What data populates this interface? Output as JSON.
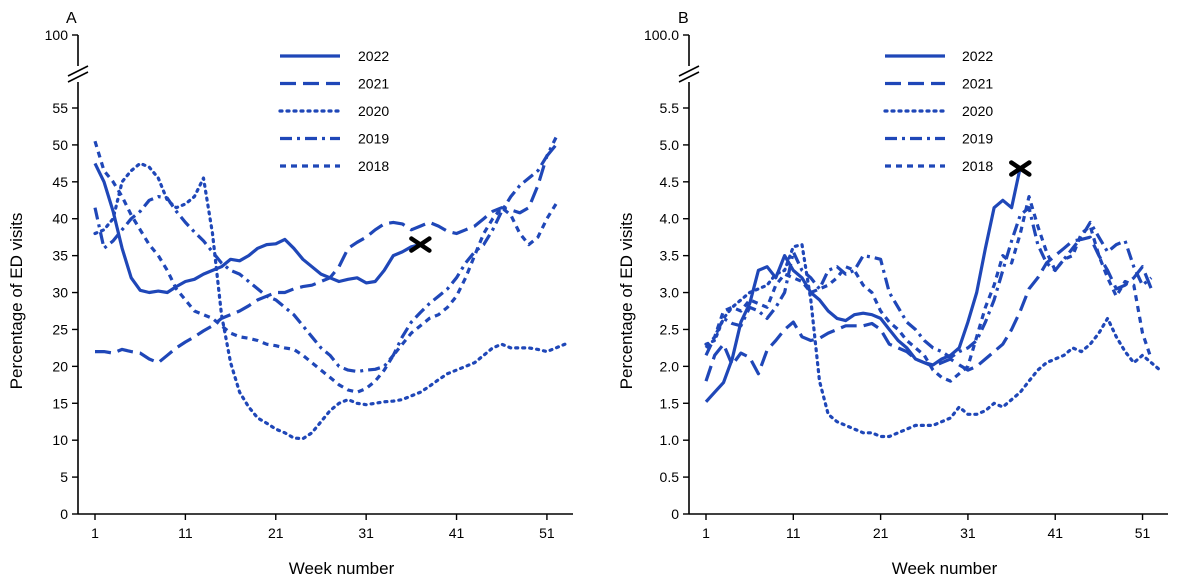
{
  "colors": {
    "series": "#1f47b8",
    "axis": "#000000",
    "marker": "#000000"
  },
  "chart_data": [
    {
      "type": "line",
      "panel_label": "A",
      "xlabel": "Week number",
      "ylabel": "Percentage of ED visits",
      "xlim": [
        1,
        53
      ],
      "xticks": [
        "1",
        "11",
        "21",
        "31",
        "41",
        "51"
      ],
      "ylim": [
        0,
        55
      ],
      "yticks": [
        "0",
        "5",
        "10",
        "15",
        "20",
        "25",
        "30",
        "35",
        "40",
        "45",
        "50",
        "55"
      ],
      "axis_break_label": "100",
      "legend_position": "top-center",
      "series": [
        {
          "name": "2022",
          "style": "solid",
          "x": [
            1,
            2,
            3,
            4,
            5,
            6,
            7,
            8,
            9,
            10,
            11,
            12,
            13,
            14,
            15,
            16,
            17,
            18,
            19,
            20,
            21,
            22,
            23,
            24,
            25,
            26,
            27,
            28,
            29,
            30,
            31,
            32,
            33,
            34,
            35,
            36,
            37
          ],
          "y": [
            47.5,
            45,
            41,
            36,
            32,
            30.3,
            30,
            30.2,
            30,
            30.8,
            31.5,
            31.8,
            32.5,
            33,
            33.5,
            34.5,
            34.3,
            35,
            36,
            36.5,
            36.6,
            37.2,
            36,
            34.5,
            33.5,
            32.5,
            32,
            31.5,
            31.8,
            32,
            31.3,
            31.5,
            33,
            35,
            35.5,
            36.2,
            36.5
          ]
        },
        {
          "name": "2021",
          "style": "long-dash",
          "x": [
            1,
            2,
            3,
            4,
            5,
            6,
            7,
            8,
            9,
            10,
            11,
            12,
            13,
            14,
            15,
            16,
            17,
            18,
            19,
            20,
            21,
            22,
            23,
            24,
            25,
            26,
            27,
            28,
            29,
            30,
            31,
            32,
            33,
            34,
            35,
            36,
            37,
            38,
            39,
            40,
            41,
            42,
            43,
            44,
            45,
            46,
            47,
            48,
            49,
            50,
            51,
            52
          ],
          "y": [
            22,
            22,
            21.8,
            22.3,
            22,
            21.8,
            21,
            20.5,
            21.5,
            22.5,
            23.3,
            24,
            24.8,
            25.5,
            26.5,
            27,
            27.5,
            28.2,
            29,
            29.5,
            30,
            30,
            30.5,
            30.8,
            31,
            31.5,
            32,
            33.5,
            36,
            36.8,
            37.5,
            38.5,
            39.3,
            39.5,
            39.3,
            38.5,
            39,
            39.5,
            39,
            38.3,
            38,
            38.5,
            39,
            40,
            41,
            41.5,
            41.2,
            40.8,
            41.5,
            44.5,
            48.5,
            50
          ]
        },
        {
          "name": "2020",
          "style": "dotted",
          "x": [
            1,
            2,
            3,
            4,
            5,
            6,
            7,
            8,
            9,
            10,
            11,
            12,
            13,
            14,
            15,
            16,
            17,
            18,
            19,
            20,
            21,
            22,
            23,
            24,
            25,
            26,
            27,
            28,
            29,
            30,
            31,
            32,
            33,
            34,
            35,
            36,
            37,
            38,
            39,
            40,
            41,
            42,
            43,
            44,
            45,
            46,
            47,
            48,
            49,
            50,
            51,
            52,
            53
          ],
          "y": [
            38,
            38.5,
            40,
            45,
            46.5,
            47.5,
            47,
            45.5,
            42.5,
            41.5,
            42,
            43,
            45.5,
            38,
            27,
            20.5,
            16.5,
            14.5,
            13,
            12.3,
            11.5,
            11,
            10.3,
            10.2,
            11,
            12.5,
            14,
            15,
            15.5,
            15,
            14.8,
            15,
            15.2,
            15.3,
            15.5,
            16,
            16.5,
            17.3,
            18.2,
            19,
            19.5,
            20,
            20.5,
            21.5,
            22.5,
            23,
            22.5,
            22.5,
            22.5,
            22.3,
            22,
            22.5,
            23
          ]
        },
        {
          "name": "2019",
          "style": "dash-dot",
          "x": [
            1,
            2,
            3,
            4,
            5,
            6,
            7,
            8,
            9,
            10,
            11,
            12,
            13,
            14,
            15,
            16,
            17,
            18,
            19,
            20,
            21,
            22,
            23,
            24,
            25,
            26,
            27,
            28,
            29,
            30,
            31,
            32,
            33,
            34,
            35,
            36,
            37,
            38,
            39,
            40,
            41,
            42,
            43,
            44,
            45,
            46,
            47,
            48,
            49,
            50,
            51,
            52
          ],
          "y": [
            41.5,
            36,
            37,
            38.5,
            40,
            41,
            42.5,
            43,
            42.8,
            41,
            39.5,
            38.2,
            37,
            35.5,
            34,
            33,
            32.5,
            31.5,
            30.5,
            29.5,
            29,
            28,
            27,
            25.5,
            24,
            22.5,
            21.5,
            20,
            19.5,
            19.3,
            19.5,
            19.6,
            20,
            21.5,
            24,
            26,
            27.3,
            28.5,
            29.5,
            30.5,
            32,
            34,
            35.5,
            36.5,
            38.5,
            41,
            43,
            44.5,
            45.5,
            46.5,
            48.5,
            51
          ]
        },
        {
          "name": "2018",
          "style": "short-dash",
          "x": [
            1,
            2,
            3,
            4,
            5,
            6,
            7,
            8,
            9,
            10,
            11,
            12,
            13,
            14,
            15,
            16,
            17,
            18,
            19,
            20,
            21,
            22,
            23,
            24,
            25,
            26,
            27,
            28,
            29,
            30,
            31,
            32,
            33,
            34,
            35,
            36,
            37,
            38,
            39,
            40,
            41,
            42,
            43,
            44,
            45,
            46,
            47,
            48,
            49,
            50,
            51,
            52
          ],
          "y": [
            50.5,
            46.5,
            45,
            43,
            40.5,
            38.5,
            36.5,
            35,
            33,
            30.5,
            29,
            27.5,
            27,
            26.5,
            25.5,
            24.5,
            24,
            23.8,
            23.5,
            23,
            22.8,
            22.5,
            22.3,
            21.5,
            20.5,
            19.5,
            18.5,
            17.5,
            16.8,
            16.5,
            17,
            18,
            19.5,
            21.5,
            23,
            24.5,
            25.5,
            26.5,
            27,
            28,
            29.5,
            32,
            35,
            38,
            40,
            41.5,
            40.5,
            38,
            36.5,
            37.5,
            40,
            42
          ]
        }
      ],
      "marker": {
        "symbol": "X",
        "x": 37,
        "y": 36.5
      }
    },
    {
      "type": "line",
      "panel_label": "B",
      "xlabel": "Week number",
      "ylabel": "Percentage of ED visits",
      "xlim": [
        1,
        53
      ],
      "xticks": [
        "1",
        "11",
        "21",
        "31",
        "41",
        "51"
      ],
      "ylim": [
        0,
        5.5
      ],
      "yticks": [
        "0",
        "0.5",
        "1.0",
        "1.5",
        "2.0",
        "2.5",
        "3.0",
        "3.5",
        "4.0",
        "4.5",
        "5.0",
        "5.5"
      ],
      "axis_break_label": "100.0",
      "legend_position": "top-center",
      "series": [
        {
          "name": "2022",
          "style": "solid",
          "x": [
            1,
            2,
            3,
            4,
            5,
            6,
            7,
            8,
            9,
            10,
            11,
            12,
            13,
            14,
            15,
            16,
            17,
            18,
            19,
            20,
            21,
            22,
            23,
            24,
            25,
            26,
            27,
            28,
            29,
            30,
            31,
            32,
            33,
            34,
            35,
            36,
            37
          ],
          "y": [
            1.52,
            1.65,
            1.78,
            2.1,
            2.6,
            2.85,
            3.3,
            3.35,
            3.2,
            3.5,
            3.3,
            3.2,
            3.0,
            2.9,
            2.75,
            2.65,
            2.62,
            2.7,
            2.72,
            2.7,
            2.65,
            2.5,
            2.35,
            2.25,
            2.1,
            2.05,
            2.02,
            2.1,
            2.15,
            2.25,
            2.6,
            3.0,
            3.6,
            4.15,
            4.25,
            4.15,
            4.7
          ]
        },
        {
          "name": "2021",
          "style": "long-dash",
          "x": [
            1,
            2,
            3,
            4,
            5,
            6,
            7,
            8,
            9,
            10,
            11,
            12,
            13,
            14,
            15,
            16,
            17,
            18,
            19,
            20,
            21,
            22,
            23,
            24,
            25,
            26,
            27,
            28,
            29,
            30,
            31,
            32,
            33,
            34,
            35,
            36,
            37,
            38,
            39,
            40,
            41,
            42,
            43,
            44,
            45,
            46,
            47,
            48,
            49,
            50,
            51,
            52
          ],
          "y": [
            1.8,
            2.15,
            2.3,
            2.02,
            2.18,
            2.12,
            1.9,
            2.22,
            2.35,
            2.5,
            2.6,
            2.4,
            2.35,
            2.38,
            2.45,
            2.5,
            2.55,
            2.55,
            2.55,
            2.58,
            2.5,
            2.3,
            2.25,
            2.2,
            2.1,
            2.05,
            2.0,
            2.05,
            2.1,
            2.02,
            1.95,
            2.0,
            2.1,
            2.2,
            2.3,
            2.5,
            2.75,
            3.05,
            3.2,
            3.4,
            3.5,
            3.6,
            3.7,
            3.72,
            3.75,
            3.5,
            3.3,
            3.05,
            3.1,
            3.2,
            3.35,
            3.05
          ]
        },
        {
          "name": "2020",
          "style": "dotted",
          "x": [
            1,
            2,
            3,
            4,
            5,
            6,
            7,
            8,
            9,
            10,
            11,
            12,
            13,
            14,
            15,
            16,
            17,
            18,
            19,
            20,
            21,
            22,
            23,
            24,
            25,
            26,
            27,
            28,
            29,
            30,
            31,
            32,
            33,
            34,
            35,
            36,
            37,
            38,
            39,
            40,
            41,
            42,
            43,
            44,
            45,
            46,
            47,
            48,
            49,
            50,
            51,
            52,
            53
          ],
          "y": [
            2.3,
            2.35,
            2.65,
            2.8,
            2.9,
            3.0,
            3.05,
            3.1,
            3.25,
            3.3,
            3.62,
            3.65,
            2.9,
            1.8,
            1.35,
            1.25,
            1.2,
            1.15,
            1.1,
            1.1,
            1.05,
            1.05,
            1.1,
            1.15,
            1.2,
            1.2,
            1.2,
            1.25,
            1.3,
            1.45,
            1.35,
            1.35,
            1.4,
            1.5,
            1.45,
            1.55,
            1.65,
            1.8,
            1.95,
            2.05,
            2.1,
            2.15,
            2.25,
            2.2,
            2.3,
            2.45,
            2.65,
            2.4,
            2.2,
            2.05,
            2.15,
            2.05,
            1.95
          ]
        },
        {
          "name": "2019",
          "style": "dash-dot",
          "x": [
            1,
            2,
            3,
            4,
            5,
            6,
            7,
            8,
            9,
            10,
            11,
            12,
            13,
            14,
            15,
            16,
            17,
            18,
            19,
            20,
            21,
            22,
            23,
            24,
            25,
            26,
            27,
            28,
            29,
            30,
            31,
            32,
            33,
            34,
            35,
            36,
            37,
            38,
            39,
            40,
            41,
            42,
            43,
            44,
            45,
            46,
            47,
            48,
            49,
            50,
            51,
            52
          ],
          "y": [
            2.15,
            2.4,
            2.65,
            2.58,
            2.55,
            2.8,
            2.75,
            2.65,
            2.8,
            3.0,
            3.55,
            3.3,
            3.2,
            3.05,
            3.3,
            3.35,
            3.25,
            3.3,
            3.5,
            3.48,
            3.45,
            3.0,
            2.8,
            2.6,
            2.5,
            2.35,
            2.25,
            2.2,
            2.12,
            2.2,
            2.25,
            2.35,
            2.6,
            2.9,
            3.3,
            3.7,
            4.05,
            4.15,
            3.65,
            3.4,
            3.3,
            3.45,
            3.6,
            3.75,
            3.95,
            3.75,
            3.55,
            3.65,
            3.7,
            3.35,
            3.1,
            3.2
          ]
        },
        {
          "name": "2018",
          "style": "short-dash",
          "x": [
            1,
            2,
            3,
            4,
            5,
            6,
            7,
            8,
            9,
            10,
            11,
            12,
            13,
            14,
            15,
            16,
            17,
            18,
            19,
            20,
            21,
            22,
            23,
            24,
            25,
            26,
            27,
            28,
            29,
            30,
            31,
            32,
            33,
            34,
            35,
            36,
            37,
            38,
            39,
            40,
            41,
            42,
            43,
            44,
            45,
            46,
            47,
            48,
            49,
            50,
            51,
            52
          ],
          "y": [
            2.25,
            2.4,
            2.75,
            2.8,
            2.75,
            2.9,
            2.85,
            2.8,
            3.1,
            3.25,
            3.2,
            3.15,
            3.0,
            3.05,
            3.1,
            3.2,
            3.35,
            3.3,
            3.1,
            3.0,
            2.75,
            2.6,
            2.5,
            2.35,
            2.25,
            2.15,
            1.95,
            1.85,
            1.8,
            1.9,
            2.0,
            2.4,
            2.8,
            3.1,
            3.5,
            3.4,
            3.8,
            4.3,
            3.9,
            3.55,
            3.3,
            3.45,
            3.5,
            3.8,
            3.9,
            3.5,
            3.2,
            2.95,
            3.15,
            3.1,
            2.45,
            2.1
          ]
        }
      ],
      "marker": {
        "symbol": "X",
        "x": 37,
        "y": 4.68
      }
    }
  ]
}
